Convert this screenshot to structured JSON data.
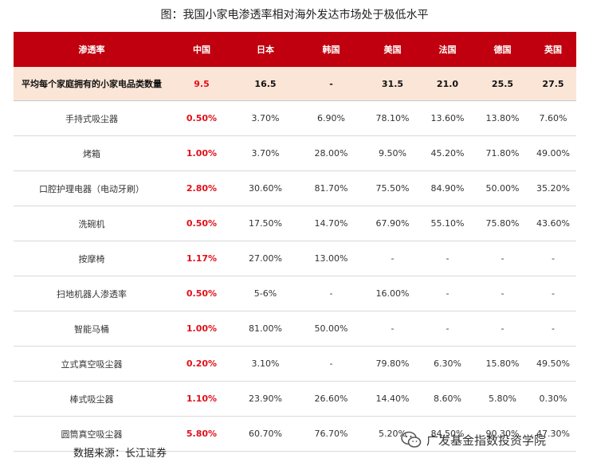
{
  "title": "图：我国小家电渗透率相对海外发达市场处于极低水平",
  "chart_data": {
    "type": "table",
    "columns": [
      "渗透率",
      "中国",
      "日本",
      "韩国",
      "美国",
      "法国",
      "德国",
      "英国"
    ],
    "highlight_row": {
      "label": "平均每个家庭拥有的小家电品类数量",
      "values": [
        "9.5",
        "16.5",
        "-",
        "31.5",
        "21.0",
        "25.5",
        "27.5"
      ]
    },
    "rows": [
      {
        "label": "手持式吸尘器",
        "values": [
          "0.50%",
          "3.70%",
          "6.90%",
          "78.10%",
          "13.60%",
          "13.80%",
          "7.60%"
        ]
      },
      {
        "label": "烤箱",
        "values": [
          "1.00%",
          "3.70%",
          "28.00%",
          "9.50%",
          "45.20%",
          "71.80%",
          "49.00%"
        ]
      },
      {
        "label": "口腔护理电器（电动牙刷）",
        "values": [
          "2.80%",
          "30.60%",
          "81.70%",
          "75.50%",
          "84.90%",
          "50.00%",
          "35.20%"
        ]
      },
      {
        "label": "洗碗机",
        "values": [
          "0.50%",
          "17.50%",
          "14.70%",
          "67.90%",
          "55.10%",
          "75.80%",
          "43.60%"
        ]
      },
      {
        "label": "按摩椅",
        "values": [
          "1.17%",
          "27.00%",
          "13.00%",
          "-",
          "-",
          "-",
          "-"
        ]
      },
      {
        "label": "扫地机器人渗透率",
        "values": [
          "0.50%",
          "5-6%",
          "-",
          "16.00%",
          "-",
          "-",
          "-"
        ]
      },
      {
        "label": "智能马桶",
        "values": [
          "1.00%",
          "81.00%",
          "50.00%",
          "-",
          "-",
          "-",
          "-"
        ]
      },
      {
        "label": "立式真空吸尘器",
        "values": [
          "0.20%",
          "3.10%",
          "-",
          "79.80%",
          "6.30%",
          "15.80%",
          "49.50%"
        ]
      },
      {
        "label": "棒式吸尘器",
        "values": [
          "1.10%",
          "23.90%",
          "26.60%",
          "14.40%",
          "8.60%",
          "5.80%",
          "0.30%"
        ]
      },
      {
        "label": "圆筒真空吸尘器",
        "values": [
          "5.80%",
          "60.70%",
          "76.70%",
          "5.20%",
          "84.50%",
          "90.30%",
          "47.30%"
        ]
      }
    ]
  },
  "source": "数据来源：长江证券",
  "watermark": {
    "text": "广发基金指数投资学院",
    "icon": "wechat-icon",
    "color": "#555555"
  },
  "colors": {
    "header_bg": "#c0000e",
    "highlight_bg": "#fbe5d6",
    "china_text": "#e0101a"
  }
}
